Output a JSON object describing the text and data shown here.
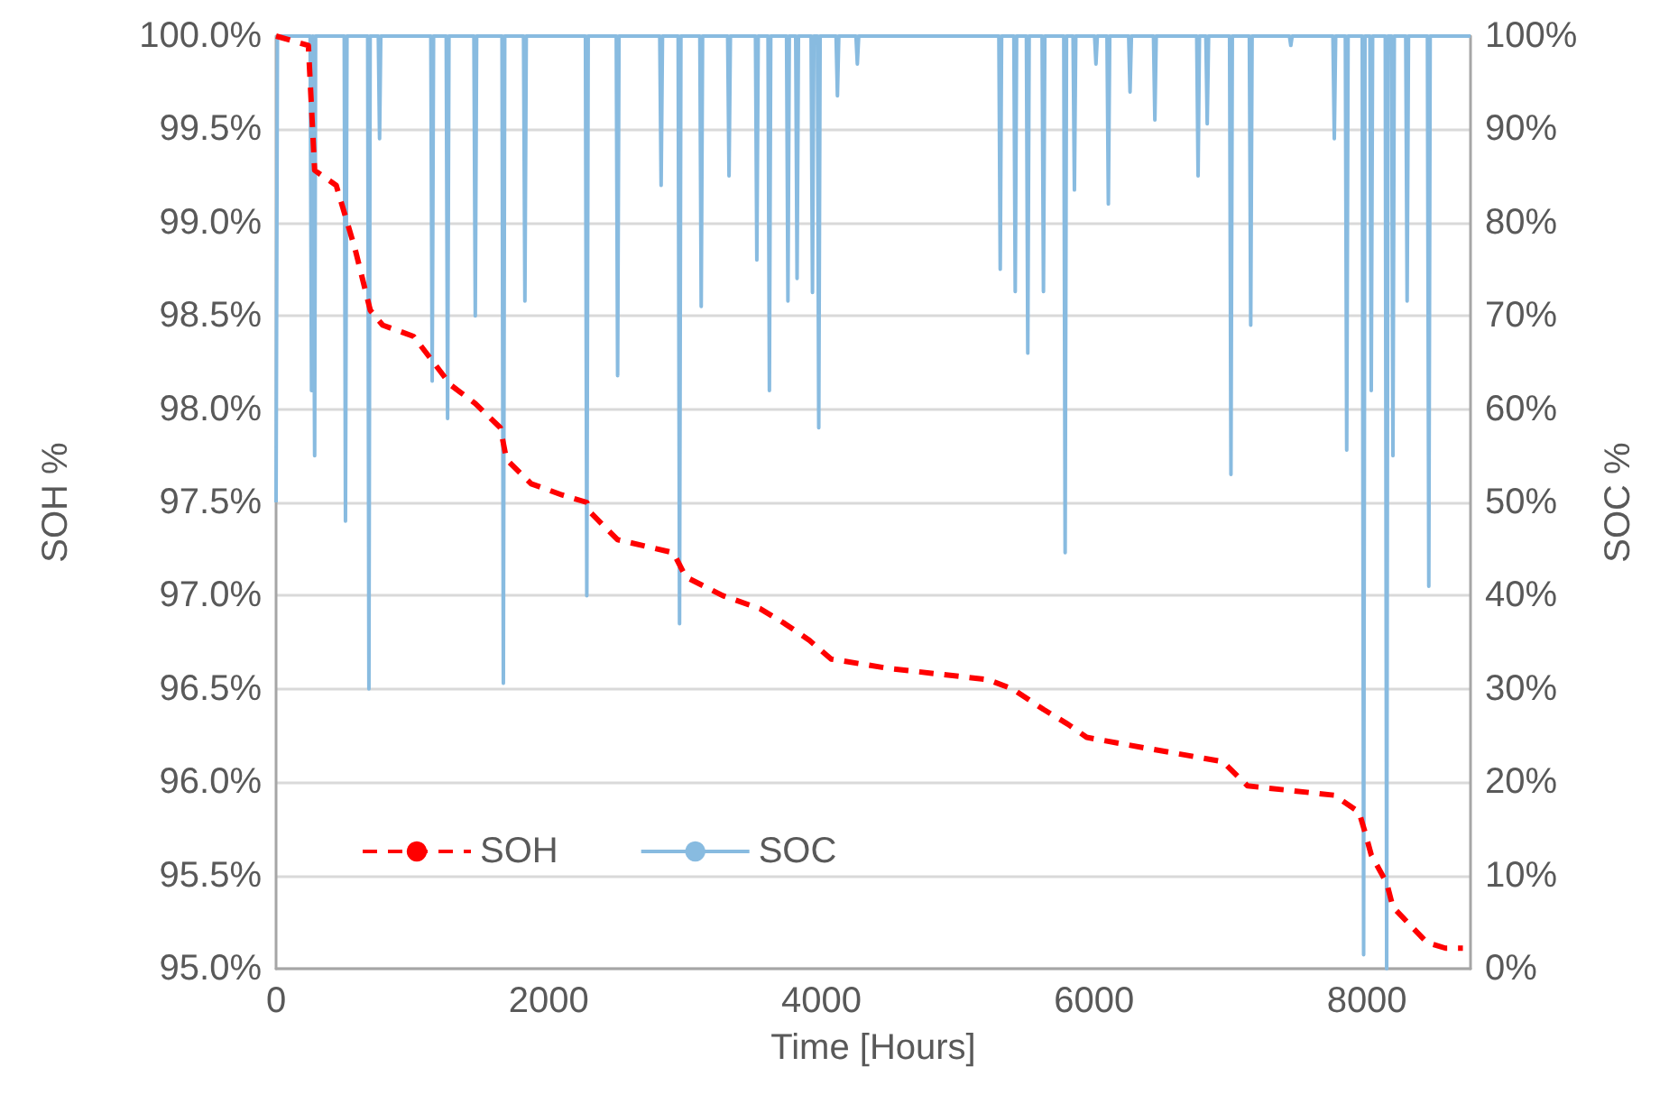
{
  "chart_data": {
    "type": "line",
    "xlabel": "Time [Hours]",
    "ylabel": "SOH %",
    "y2label": "SOC %",
    "xlim": [
      0,
      8760
    ],
    "xticks": [
      0,
      2000,
      4000,
      6000,
      8000
    ],
    "ylim": [
      95,
      100
    ],
    "yticks": [
      {
        "value": 95,
        "label": "95.0%"
      },
      {
        "value": 95.5,
        "label": "95.5%"
      },
      {
        "value": 96,
        "label": "96.0%"
      },
      {
        "value": 96.5,
        "label": "96.5%"
      },
      {
        "value": 97,
        "label": "97.0%"
      },
      {
        "value": 97.5,
        "label": "97.5%"
      },
      {
        "value": 98,
        "label": "98.0%"
      },
      {
        "value": 98.5,
        "label": "98.5%"
      },
      {
        "value": 99,
        "label": "99.0%"
      },
      {
        "value": 99.5,
        "label": "99.5%"
      },
      {
        "value": 100,
        "label": "100.0%"
      }
    ],
    "y2lim": [
      0,
      100
    ],
    "y2ticks": [
      {
        "value": 0,
        "label": "0%"
      },
      {
        "value": 10,
        "label": "10%"
      },
      {
        "value": 20,
        "label": "20%"
      },
      {
        "value": 30,
        "label": "30%"
      },
      {
        "value": 40,
        "label": "40%"
      },
      {
        "value": 50,
        "label": "50%"
      },
      {
        "value": 60,
        "label": "60%"
      },
      {
        "value": 70,
        "label": "70%"
      },
      {
        "value": 80,
        "label": "80%"
      },
      {
        "value": 90,
        "label": "90%"
      },
      {
        "value": 100,
        "label": "100%"
      }
    ],
    "grid": "y",
    "legend": "bottom left",
    "marker": "none",
    "series": [
      {
        "name": "SOH",
        "color": "#ff0000",
        "line_style": "dashed",
        "x": [
          0,
          237,
          283,
          441,
          579,
          691,
          782,
          1009,
          1145,
          1280,
          1461,
          1645,
          1690,
          1871,
          2097,
          2279,
          2300,
          2505,
          2914,
          3005,
          3276,
          3550,
          3731,
          3912,
          4071,
          4493,
          5220,
          5400,
          5628,
          5809,
          5945,
          6399,
          6944,
          7125,
          7761,
          7942,
          7987,
          8032,
          8145,
          8191,
          8441,
          8576,
          8704
        ],
        "values": [
          100,
          99.95,
          99.28,
          99.2,
          98.86,
          98.53,
          98.45,
          98.39,
          98.26,
          98.13,
          98.03,
          97.9,
          97.73,
          97.6,
          97.54,
          97.5,
          97.45,
          97.3,
          97.23,
          97.1,
          97.0,
          96.93,
          96.85,
          96.76,
          96.66,
          96.61,
          96.55,
          96.5,
          96.39,
          96.31,
          96.24,
          96.18,
          96.11,
          95.98,
          95.93,
          95.84,
          95.73,
          95.61,
          95.46,
          95.33,
          95.14,
          95.11,
          95.11
        ]
      },
      {
        "name": "SOC",
        "color": "#88bbe0",
        "line_style": "solid",
        "axis": "y2",
        "x": [
          0,
          10,
          250,
          260,
          270,
          275,
          283,
          290,
          500,
          509,
          520,
          672,
          681,
          690,
          750,
          759,
          768,
          1135,
          1145,
          1155,
          1248,
          1258,
          1268,
          1451,
          1461,
          1471,
          1657,
          1667,
          1677,
          1815,
          1825,
          1835,
          2269,
          2279,
          2289,
          2495,
          2505,
          2515,
          2814,
          2824,
          2834,
          2949,
          2959,
          2969,
          3108,
          3118,
          3128,
          3312,
          3322,
          3332,
          3516,
          3526,
          3536,
          3608,
          3618,
          3628,
          3744,
          3754,
          3764,
          3811,
          3821,
          3831,
          3924,
          3934,
          3944,
          3970,
          3980,
          3990,
          4107,
          4117,
          4127,
          4253,
          4263,
          4273,
          5301,
          5311,
          5321,
          5411,
          5421,
          5431,
          5503,
          5513,
          5523,
          5618,
          5628,
          5638,
          5777,
          5787,
          5797,
          5845,
          5855,
          5865,
          6003,
          6013,
          6023,
          6094,
          6104,
          6114,
          6253,
          6263,
          6273,
          6435,
          6445,
          6455,
          6752,
          6762,
          6772,
          6819,
          6829,
          6839,
          6993,
          7003,
          7013,
          7138,
          7148,
          7158,
          7432,
          7442,
          7452,
          7751,
          7761,
          7771,
          7842,
          7852,
          7862,
          7966,
          7976,
          7986,
          8022,
          8032,
          8042,
          8135,
          8145,
          8155,
          8181,
          8191,
          8201,
          8285,
          8295,
          8305,
          8444,
          8454,
          8464,
          8760
        ],
        "values": [
          50,
          100,
          100,
          62,
          100,
          100,
          55,
          100,
          100,
          48,
          100,
          100,
          30,
          100,
          100,
          89,
          100,
          100,
          63,
          100,
          100,
          59,
          100,
          100,
          70,
          100,
          100,
          30.6,
          100,
          100,
          71.6,
          100,
          100,
          40,
          100,
          100,
          63.6,
          100,
          100,
          84,
          100,
          100,
          37,
          100,
          100,
          71,
          100,
          100,
          85,
          100,
          100,
          76,
          100,
          100,
          62,
          100,
          100,
          71.6,
          100,
          100,
          74,
          100,
          100,
          72.5,
          100,
          100,
          58,
          100,
          100,
          93.6,
          100,
          100,
          97,
          100,
          100,
          75,
          100,
          100,
          72.6,
          100,
          100,
          66,
          100,
          100,
          72.6,
          100,
          100,
          44.6,
          100,
          100,
          83.5,
          100,
          100,
          97,
          100,
          100,
          82,
          100,
          100,
          94,
          100,
          100,
          91,
          100,
          100,
          85,
          100,
          100,
          90.6,
          100,
          100,
          53,
          100,
          100,
          69,
          100,
          100,
          99,
          100,
          100,
          89,
          100,
          100,
          55.6,
          100,
          100,
          1.5,
          100,
          100,
          62,
          100,
          100,
          0,
          100,
          100,
          55,
          100,
          100,
          71.6,
          100,
          100,
          41,
          100,
          100
        ]
      }
    ]
  }
}
